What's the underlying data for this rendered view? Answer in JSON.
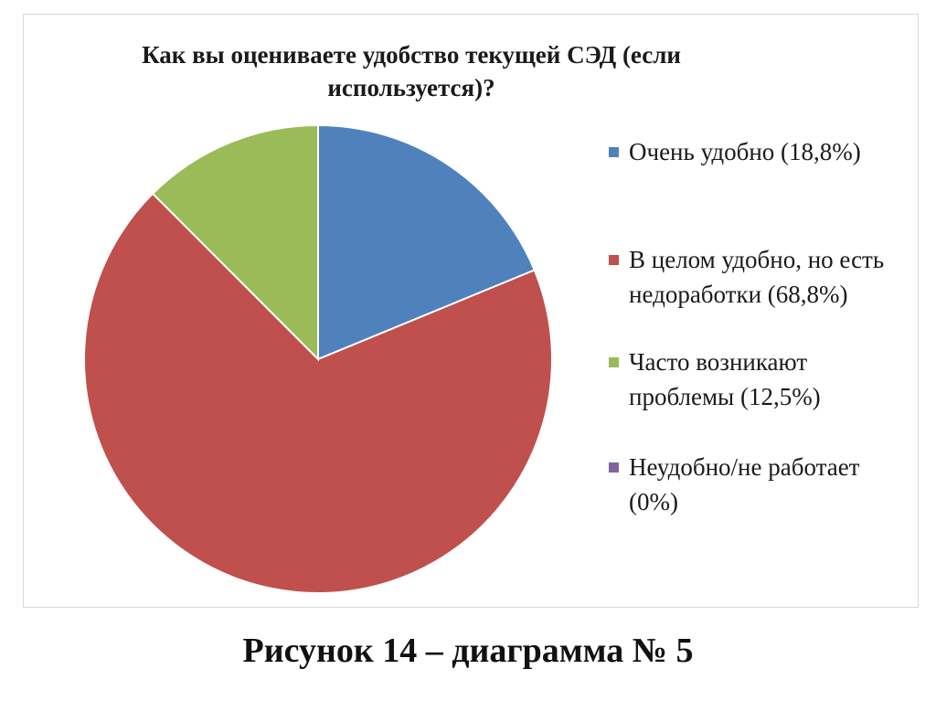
{
  "chart_data": {
    "type": "pie",
    "title": "Как вы оцениваете удобство текущей СЭД (если используется)?",
    "categories": [
      "Очень удобно (18,8%)",
      "В целом удобно, но есть недоработки (68,8%)",
      "Часто возникают проблемы (12,5%)",
      "Неудобно/не работает (0%)"
    ],
    "values": [
      18.8,
      68.8,
      12.5,
      0
    ],
    "colors": [
      "#4f81bd",
      "#c0504d",
      "#9bbb59",
      "#8064a2"
    ],
    "legend": "right"
  },
  "caption": "Рисунок 14 – диаграмма № 5"
}
